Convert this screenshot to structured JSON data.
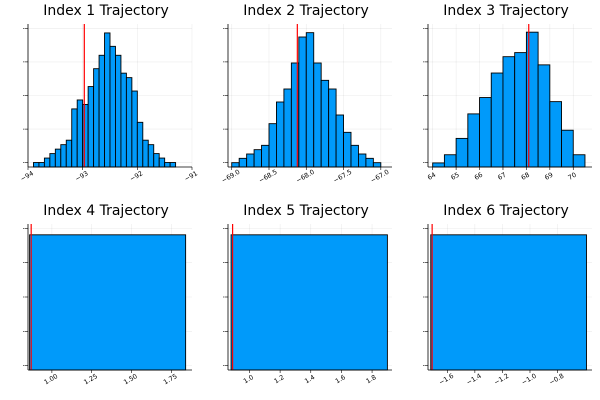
{
  "colors": {
    "bar_fill": "#009AFA",
    "marker_line": "#FF0000"
  },
  "chart_data": [
    {
      "type": "bar",
      "title": "Index 1 Trajectory",
      "xlim": [
        -94,
        -91
      ],
      "xticks": [
        -94,
        -93,
        -92,
        -91
      ],
      "xtick_labels": [
        "−94",
        "−93",
        "−92",
        "−91"
      ],
      "bin_width": 0.1,
      "bins_start": -93.9,
      "counts": [
        1,
        1,
        2,
        3,
        4,
        5,
        6,
        13,
        15,
        14,
        18,
        22,
        25,
        30,
        27,
        25,
        21,
        20,
        17,
        10,
        6,
        5,
        3,
        2,
        1,
        1
      ],
      "ylim": [
        0,
        32
      ],
      "marker_x": -92.97,
      "grid": true
    },
    {
      "type": "bar",
      "title": "Index 2 Trajectory",
      "xlim": [
        -69.05,
        -66.85
      ],
      "xticks": [
        -69.0,
        -68.5,
        -68.0,
        -67.5,
        -67.0
      ],
      "xtick_labels": [
        "−69.0",
        "−68.5",
        "−68.0",
        "−67.5",
        "−67.0"
      ],
      "bin_width": 0.1,
      "bins_start": -69.0,
      "counts": [
        1,
        2,
        3,
        4,
        5,
        10,
        15,
        18,
        24,
        30,
        31,
        24,
        20,
        18,
        12,
        8,
        5,
        3,
        2,
        1
      ],
      "ylim": [
        0,
        33
      ],
      "marker_x": -68.12,
      "grid": true
    },
    {
      "type": "bar",
      "title": "Index 3 Trajectory",
      "xlim": [
        63.8,
        70.8
      ],
      "xticks": [
        64,
        65,
        66,
        67,
        68,
        69,
        70
      ],
      "xtick_labels": [
        "64",
        "65",
        "66",
        "67",
        "68",
        "69",
        "70"
      ],
      "bin_width": 0.5,
      "bins_start": 64.0,
      "counts": [
        1,
        3,
        7,
        13,
        17,
        23,
        27,
        28,
        33,
        25,
        16,
        9,
        3
      ],
      "ylim": [
        0,
        35
      ],
      "marker_x": 68.1,
      "grid": true
    },
    {
      "type": "bar",
      "title": "Index 4 Trajectory",
      "xlim": [
        0.85,
        1.88
      ],
      "xticks": [
        1.0,
        1.25,
        1.5,
        1.75
      ],
      "xtick_labels": [
        "1.00",
        "1.25",
        "1.50",
        "1.75"
      ],
      "bin_width": 0.98,
      "bins_start": 0.86,
      "counts": [
        1
      ],
      "ylim": [
        0,
        1.08
      ],
      "marker_x": 0.87,
      "grid": true
    },
    {
      "type": "bar",
      "title": "Index 5 Trajectory",
      "xlim": [
        0.86,
        1.93
      ],
      "xticks": [
        1.0,
        1.2,
        1.4,
        1.6,
        1.8
      ],
      "xtick_labels": [
        "1.0",
        "1.2",
        "1.4",
        "1.6",
        "1.8"
      ],
      "bin_width": 1.02,
      "bins_start": 0.88,
      "counts": [
        1
      ],
      "ylim": [
        0,
        1.08
      ],
      "marker_x": 0.89,
      "grid": true
    },
    {
      "type": "bar",
      "title": "Index 6 Trajectory",
      "xlim": [
        -1.74,
        -0.55
      ],
      "xticks": [
        -1.6,
        -1.4,
        -1.2,
        -1.0,
        -0.8
      ],
      "xtick_labels": [
        "−1.6",
        "−1.4",
        "−1.2",
        "−1.0",
        "−0.8"
      ],
      "bin_width": 1.13,
      "bins_start": -1.72,
      "counts": [
        1
      ],
      "ylim": [
        0,
        1.08
      ],
      "marker_x": -1.71,
      "grid": true
    }
  ]
}
